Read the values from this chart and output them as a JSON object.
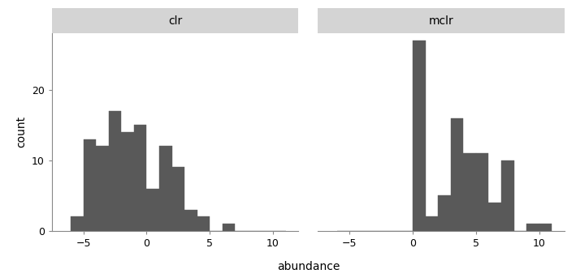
{
  "clr": {
    "label": "clr",
    "bin_edges": [
      -6,
      -5,
      -4,
      -3,
      -2,
      -1,
      0,
      1,
      2,
      3,
      4,
      5,
      6,
      7,
      8,
      9,
      10,
      11
    ],
    "counts": [
      2,
      13,
      12,
      17,
      14,
      15,
      6,
      12,
      9,
      3,
      2,
      0,
      1,
      0,
      0,
      0,
      0
    ],
    "xlim": [
      -7.5,
      12
    ],
    "xticks": [
      -5,
      0,
      5,
      10
    ]
  },
  "mclr": {
    "label": "mclr",
    "bin_edges": [
      -6,
      -5,
      -4,
      -3,
      -2,
      -1,
      0,
      1,
      2,
      3,
      4,
      5,
      6,
      7,
      8,
      9,
      10,
      11
    ],
    "counts": [
      0,
      0,
      0,
      0,
      0,
      0,
      27,
      2,
      5,
      16,
      11,
      11,
      4,
      10,
      0,
      1,
      1
    ],
    "xlim": [
      -7.5,
      12
    ],
    "xticks": [
      -5,
      0,
      5,
      10
    ]
  },
  "ylim": [
    0,
    28
  ],
  "yticks": [
    0,
    10,
    20
  ],
  "ylabel": "count",
  "xlabel": "abundance",
  "bar_color": "#595959",
  "bar_edgecolor": "#595959",
  "background_color": "#ffffff",
  "strip_bg_color": "#d4d4d4",
  "strip_text_color": "#000000",
  "strip_fontsize": 10,
  "axis_label_fontsize": 10,
  "tick_fontsize": 9
}
